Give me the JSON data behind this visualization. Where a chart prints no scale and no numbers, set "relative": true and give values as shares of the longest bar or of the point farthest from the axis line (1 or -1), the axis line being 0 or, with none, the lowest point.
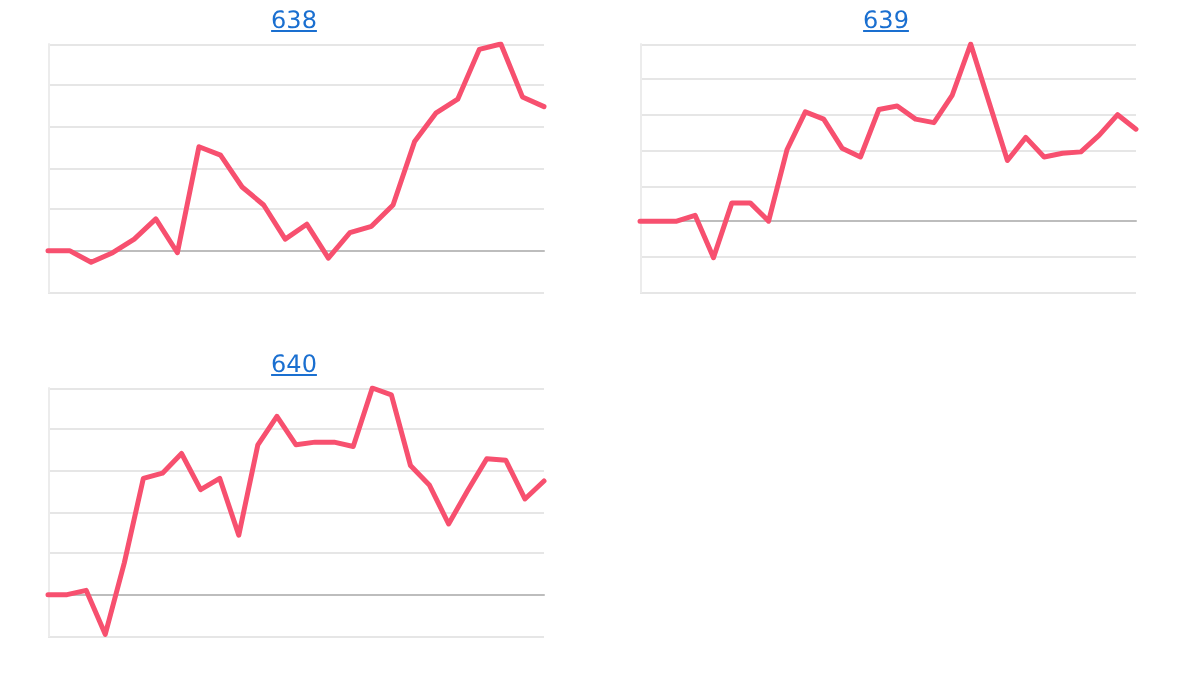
{
  "chart_data": [
    {
      "type": "line",
      "title": "638",
      "relative": true,
      "grid": true,
      "color": "#f7506f",
      "categories": [
        null,
        null,
        null,
        null,
        null,
        null,
        null,
        null,
        null,
        null,
        null,
        null,
        null,
        null,
        null,
        null,
        null,
        null,
        null,
        null,
        null,
        null,
        null,
        null
      ],
      "values": [
        0,
        0,
        -0.056,
        -0.01,
        0.056,
        0.154,
        -0.01,
        0.503,
        0.462,
        0.308,
        0.221,
        0.056,
        0.128,
        -0.036,
        0.087,
        0.118,
        0.221,
        0.528,
        0.667,
        0.733,
        0.974,
        1,
        0.744,
        0.697
      ]
    },
    {
      "type": "line",
      "title": "639",
      "relative": true,
      "grid": true,
      "color": "#f7506f",
      "categories": [
        null,
        null,
        null,
        null,
        null,
        null,
        null,
        null,
        null,
        null,
        null,
        null,
        null,
        null,
        null,
        null,
        null,
        null,
        null,
        null,
        null,
        null,
        null,
        null,
        null,
        null,
        null,
        null
      ],
      "values": [
        0,
        0,
        0,
        0.033,
        -0.206,
        0.103,
        0.103,
        0,
        0.403,
        0.617,
        0.576,
        0.412,
        0.362,
        0.63,
        0.65,
        0.576,
        0.556,
        0.712,
        1,
        0.671,
        0.342,
        0.473,
        0.362,
        0.383,
        0.391,
        0.486,
        0.601,
        0.519
      ]
    },
    {
      "type": "line",
      "title": "640",
      "relative": true,
      "grid": true,
      "color": "#f7506f",
      "categories": [
        null,
        null,
        null,
        null,
        null,
        null,
        null,
        null,
        null,
        null,
        null,
        null,
        null,
        null,
        null,
        null,
        null,
        null,
        null,
        null,
        null,
        null,
        null,
        null,
        null,
        null,
        null
      ],
      "values": [
        0,
        0,
        0.021,
        -0.192,
        0.154,
        0.563,
        0.588,
        0.683,
        0.508,
        0.563,
        0.288,
        0.725,
        0.863,
        0.725,
        0.738,
        0.738,
        0.717,
        1,
        0.967,
        0.625,
        0.529,
        0.342,
        0.504,
        0.658,
        0.65,
        0.463,
        0.55
      ]
    }
  ]
}
